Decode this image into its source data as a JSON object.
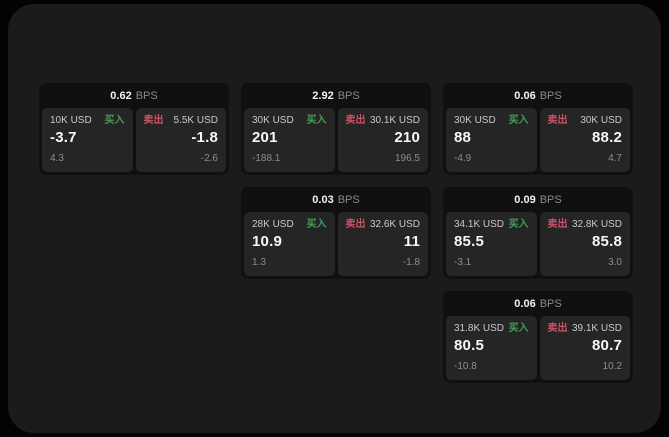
{
  "page": {
    "background": "#030303",
    "surface_color": "#1b1b1b"
  },
  "labels": {
    "buy": "买入",
    "sell": "卖出",
    "bps_unit": "BPS"
  },
  "colors": {
    "buy": "#42a056",
    "sell": "#cb5367"
  },
  "cards": [
    {
      "row": 0,
      "col": 0,
      "bps": "0.62",
      "buy": {
        "amount": "10K USD",
        "value": "-3.7",
        "sub": "4.3"
      },
      "sell": {
        "amount": "5.5K USD",
        "value": "-1.8",
        "sub": "-2.6"
      }
    },
    {
      "row": 0,
      "col": 1,
      "bps": "2.92",
      "buy": {
        "amount": "30K USD",
        "value": "201",
        "sub": "-188.1"
      },
      "sell": {
        "amount": "30.1K USD",
        "value": "210",
        "sub": "196.5"
      }
    },
    {
      "row": 0,
      "col": 2,
      "bps": "0.06",
      "buy": {
        "amount": "30K USD",
        "value": "88",
        "sub": "-4.9"
      },
      "sell": {
        "amount": "30K USD",
        "value": "88.2",
        "sub": "4.7"
      }
    },
    {
      "row": 1,
      "col": 1,
      "bps": "0.03",
      "buy": {
        "amount": "28K USD",
        "value": "10.9",
        "sub": "1.3"
      },
      "sell": {
        "amount": "32.6K USD",
        "value": "11",
        "sub": "-1.8"
      }
    },
    {
      "row": 1,
      "col": 2,
      "bps": "0.09",
      "buy": {
        "amount": "34.1K USD",
        "value": "85.5",
        "sub": "-3.1"
      },
      "sell": {
        "amount": "32.8K USD",
        "value": "85.8",
        "sub": "3.0"
      }
    },
    {
      "row": 2,
      "col": 2,
      "bps": "0.06",
      "buy": {
        "amount": "31.8K USD",
        "value": "80.5",
        "sub": "-10.8"
      },
      "sell": {
        "amount": "39.1K USD",
        "value": "80.7",
        "sub": "10.2"
      }
    }
  ]
}
